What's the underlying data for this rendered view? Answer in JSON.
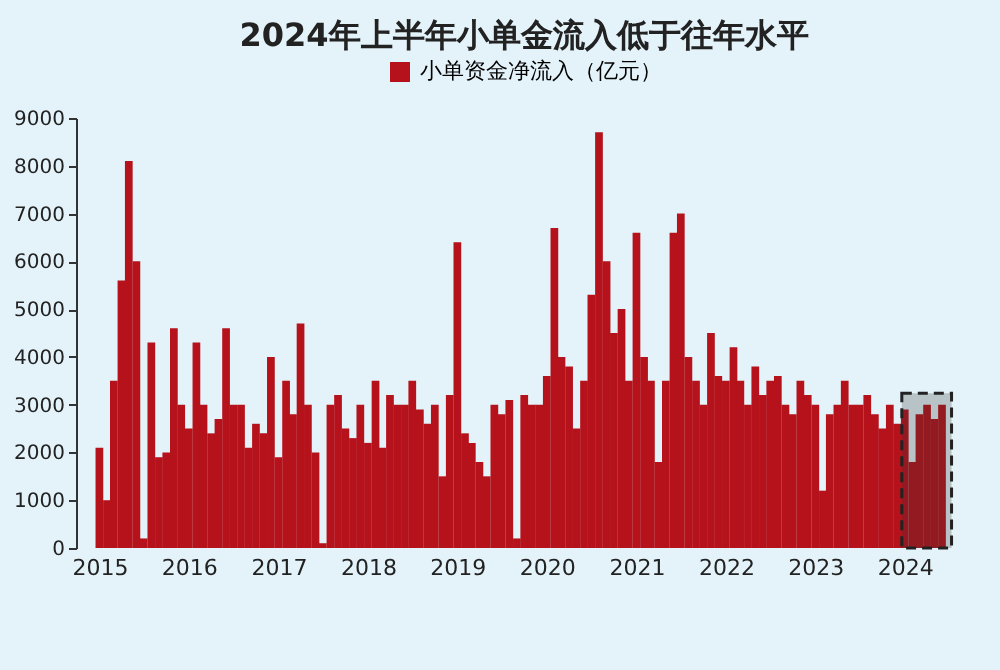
{
  "chart_data": {
    "type": "bar",
    "title": "2024年上半年小单金流入低于往年水平",
    "x": [
      "2015-01",
      "2015-02",
      "2015-03",
      "2015-04",
      "2015-05",
      "2015-06",
      "2015-07",
      "2015-08",
      "2015-09",
      "2015-10",
      "2015-11",
      "2015-12",
      "2016-01",
      "2016-02",
      "2016-03",
      "2016-04",
      "2016-05",
      "2016-06",
      "2016-07",
      "2016-08",
      "2016-09",
      "2016-10",
      "2016-11",
      "2016-12",
      "2017-01",
      "2017-02",
      "2017-03",
      "2017-04",
      "2017-05",
      "2017-06",
      "2017-07",
      "2017-08",
      "2017-09",
      "2017-10",
      "2017-11",
      "2017-12",
      "2018-01",
      "2018-02",
      "2018-03",
      "2018-04",
      "2018-05",
      "2018-06",
      "2018-07",
      "2018-08",
      "2018-09",
      "2018-10",
      "2018-11",
      "2018-12",
      "2019-01",
      "2019-02",
      "2019-03",
      "2019-04",
      "2019-05",
      "2019-06",
      "2019-07",
      "2019-08",
      "2019-09",
      "2019-10",
      "2019-11",
      "2019-12",
      "2020-01",
      "2020-02",
      "2020-03",
      "2020-04",
      "2020-05",
      "2020-06",
      "2020-07",
      "2020-08",
      "2020-09",
      "2020-10",
      "2020-11",
      "2020-12",
      "2021-01",
      "2021-02",
      "2021-03",
      "2021-04",
      "2021-05",
      "2021-06",
      "2021-07",
      "2021-08",
      "2021-09",
      "2021-10",
      "2021-11",
      "2021-12",
      "2022-01",
      "2022-02",
      "2022-03",
      "2022-04",
      "2022-05",
      "2022-06",
      "2022-07",
      "2022-08",
      "2022-09",
      "2022-10",
      "2022-11",
      "2022-12",
      "2023-01",
      "2023-02",
      "2023-03",
      "2023-04",
      "2023-05",
      "2023-06",
      "2023-07",
      "2023-08",
      "2023-09",
      "2023-10",
      "2023-11",
      "2023-12",
      "2024-01",
      "2024-02",
      "2024-03",
      "2024-04",
      "2024-05",
      "2024-06"
    ],
    "series": [
      {
        "name": "小单资金净流入（亿元）",
        "color": "#b5121b",
        "values": [
          2100,
          1000,
          3500,
          5600,
          8100,
          6000,
          200,
          4300,
          1900,
          2000,
          4600,
          3000,
          2500,
          4300,
          3000,
          2400,
          2700,
          4600,
          3000,
          3000,
          2100,
          2600,
          2400,
          4000,
          1900,
          3500,
          2800,
          4700,
          3000,
          2000,
          100,
          3000,
          3200,
          2500,
          2300,
          3000,
          2200,
          3500,
          2100,
          3200,
          3000,
          3000,
          3500,
          2900,
          2600,
          3000,
          1500,
          3200,
          6400,
          2400,
          2200,
          1800,
          1500,
          3000,
          2800,
          3100,
          200,
          3200,
          3000,
          3000,
          3600,
          6700,
          4000,
          3800,
          2500,
          3500,
          5300,
          8700,
          6000,
          4500,
          5000,
          3500,
          6600,
          4000,
          3500,
          1800,
          3500,
          6600,
          7000,
          4000,
          3500,
          3000,
          4500,
          3600,
          3500,
          4200,
          3500,
          3000,
          3800,
          3200,
          3500,
          3600,
          3000,
          2800,
          3500,
          3200,
          3000,
          1200,
          2800,
          3000,
          3500,
          3000,
          3000,
          3200,
          2800,
          2500,
          3000,
          2600,
          2900,
          1800,
          2800,
          3000,
          2700,
          3000
        ]
      }
    ],
    "xlim": [
      "2014-12-10",
      "2024-07-20"
    ],
    "xticks": [
      {
        "value": "2015-01-01",
        "label": "2015"
      },
      {
        "value": "2016-01-01",
        "label": "2016"
      },
      {
        "value": "2017-01-01",
        "label": "2017"
      },
      {
        "value": "2018-01-01",
        "label": "2018"
      },
      {
        "value": "2019-01-01",
        "label": "2019"
      },
      {
        "value": "2020-01-01",
        "label": "2020"
      },
      {
        "value": "2021-01-01",
        "label": "2021"
      },
      {
        "value": "2022-01-01",
        "label": "2022"
      },
      {
        "value": "2023-01-01",
        "label": "2023"
      },
      {
        "value": "2024-01-01",
        "label": "2024"
      }
    ],
    "ylim": [
      0,
      9000
    ],
    "yticks": [
      0,
      1000,
      2000,
      3000,
      4000,
      5000,
      6000,
      7000,
      8000,
      9000
    ],
    "bands": [
      {
        "axis": "x",
        "from": "2023-12-20",
        "to": "2024-07-10",
        "color": "#333333"
      }
    ],
    "legend": "top",
    "grid": false
  }
}
